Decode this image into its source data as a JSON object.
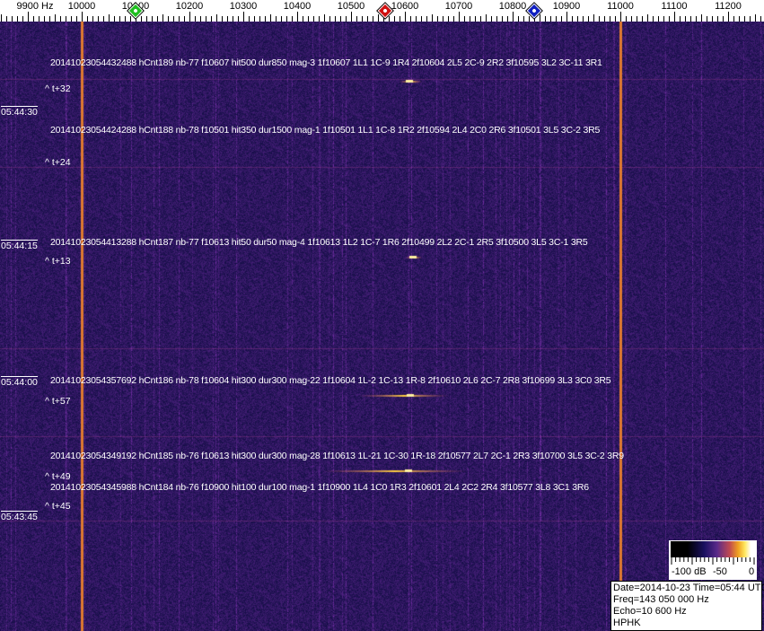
{
  "axis": {
    "unit_label": "9900 Hz",
    "ticks": [
      "10000",
      "10100",
      "10200",
      "10300",
      "10400",
      "10500",
      "10600",
      "10700",
      "10800",
      "10900",
      "11000",
      "11100",
      "11200"
    ],
    "range_hz": [
      9850,
      11270
    ]
  },
  "markers": [
    {
      "name": "green-marker",
      "freq_hz": 10100,
      "color": "#1fbf1f"
    },
    {
      "name": "red-marker",
      "freq_hz": 10563,
      "color": "#d01010"
    },
    {
      "name": "blue-marker",
      "freq_hz": 10840,
      "color": "#1020c0"
    }
  ],
  "timestamps": [
    "05:44:30",
    "05:44:15",
    "05:44:00",
    "05:43:45"
  ],
  "events": [
    {
      "text": "20141023054432488 hCnt189 nb-77 f10607 hit500 dur850 mag-3 1f10607 1L1 1C-9 1R4 2f10604 2L5 2C-9 2R2 3f10595 3L2 3C-11 3R1",
      "offset": "^ t+32"
    },
    {
      "text": "20141023054424288 hCnt188 nb-78 f10501 hit350 dur1500 mag-1 1f10501 1L1 1C-8 1R2 2f10594 2L4 2C0 2R6 3f10501 3L5 3C-2 3R5",
      "offset": "^ t+24"
    },
    {
      "text": "20141023054413288 hCnt187 nb-77 f10613 hit50 dur50 mag-4 1f10613 1L2 1C-7 1R6 2f10499 2L2 2C-1 2R5 3f10500 3L5 3C-1 3R5",
      "offset": "^ t+13"
    },
    {
      "text": "20141023054357692 hCnt186 nb-78 f10604 hit300 dur300 mag-22 1f10604 1L-2 1C-13 1R-8 2f10610 2L6 2C-7 2R8 3f10699 3L3 3C0 3R5",
      "offset": "^ t+57"
    },
    {
      "text": "20141023054349192 hCnt185 nb-76 f10613 hit300 dur300 mag-28 1f10613 1L-21 1C-30 1R-18 2f10577 2L7 2C-1 2R3 3f10700 3L5 3C-2 3R9",
      "offset": "^ t+49"
    },
    {
      "text": "20141023054345988 hCnt184 nb-76 f10900 hit100 dur100 mag-1 1f10900 1L4 1C0 1R3 2f10601 2L4 2C2 2R4 3f10577 3L8 3C1 3R6",
      "offset": "^ t+45"
    }
  ],
  "colorbar": {
    "labels": [
      "-100 dB",
      "-50",
      "0"
    ]
  },
  "info": {
    "date_time": "Date=2014-10-23 Time=05:44 UTC",
    "freq": "Freq=143 050 000 Hz",
    "echo": "Echo=10 600 Hz",
    "station": "HPHK"
  },
  "colors": {
    "background": "#1e1a6e",
    "carrier": "#e07a30",
    "echo": "#ffd040"
  }
}
